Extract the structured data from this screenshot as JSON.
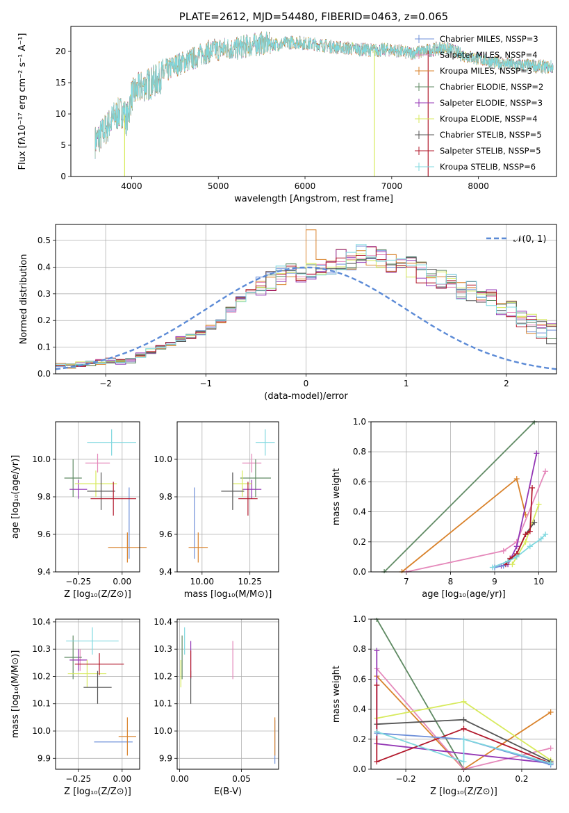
{
  "chart_data": [
    {
      "type": "line",
      "title": "PLATE=2612, MJD=54480, FIBERID=0463, z=0.065",
      "xlabel": "wavelength [Angstrom, rest frame]",
      "ylabel": "Flux [f$_\\lambda$10$^{-17}$ erg cm$^{-2}$ s$^{-1}$ A$^{-1}$]",
      "ylabel_display": "Flux [fλ10⁻¹⁷ erg cm⁻² s⁻¹ A⁻¹]",
      "xlim": [
        3300,
        8900
      ],
      "ylim": [
        0,
        24
      ],
      "xticks": [
        "4000",
        "5000",
        "6000",
        "7000",
        "8000"
      ],
      "yticks": [
        "0",
        "5",
        "10",
        "15",
        "20"
      ],
      "legend_position": "top-right",
      "series": [
        {
          "name": "Chabrier MILES, N$_{SSP}$=3",
          "label_display": "Chabrier MILES, NSSP=3",
          "color": "#6d8fd9"
        },
        {
          "name": "Salpeter MILES, N$_{SSP}$=4",
          "label_display": "Salpeter MILES, NSSP=4",
          "color": "#e589bb"
        },
        {
          "name": "Kroupa MILES, N$_{SSP}$=3",
          "label_display": "Kroupa MILES, NSSP=3",
          "color": "#d9822b"
        },
        {
          "name": "Chabrier ELODIE, N$_{SSP}$=2",
          "label_display": "Chabrier ELODIE, NSSP=2",
          "color": "#5f8a63"
        },
        {
          "name": "Salpeter ELODIE, N$_{SSP}$=3",
          "label_display": "Salpeter ELODIE, NSSP=3",
          "color": "#9437b5"
        },
        {
          "name": "Kroupa ELODIE, N$_{SSP}$=4",
          "label_display": "Kroupa ELODIE, NSSP=4",
          "color": "#d7ea5c"
        },
        {
          "name": "Chabrier STELIB, N$_{SSP}$=5",
          "label_display": "Chabrier STELIB, NSSP=5",
          "color": "#555555"
        },
        {
          "name": "Salpeter STELIB, N$_{SSP}$=5",
          "label_display": "Salpeter STELIB, NSSP=5",
          "color": "#b2182b"
        },
        {
          "name": "Kroupa STELIB, N$_{SSP}$=6",
          "label_display": "Kroupa STELIB, NSSP=6",
          "color": "#7fd8df"
        }
      ],
      "continuum": {
        "x": [
          3580,
          3700,
          3800,
          3900,
          3950,
          4000,
          4100,
          4200,
          4300,
          4400,
          4500,
          4600,
          4700,
          4800,
          4900,
          5000,
          5100,
          5200,
          5300,
          5400,
          5500,
          5600,
          5700,
          5800,
          5900,
          6000,
          6200,
          6400,
          6600,
          6800,
          7000,
          7200,
          7400,
          7600,
          7700,
          7800,
          8000,
          8200,
          8400,
          8600,
          8800
        ],
        "y": [
          5.5,
          7.5,
          9.5,
          10.5,
          9.0,
          13.0,
          14.2,
          14.8,
          15.5,
          16.8,
          17.8,
          18.3,
          18.8,
          19.5,
          20.0,
          20.3,
          20.5,
          20.4,
          20.8,
          21.0,
          21.3,
          21.2,
          21.1,
          21.4,
          21.5,
          21.3,
          21.0,
          20.6,
          20.4,
          20.2,
          20.3,
          19.7,
          20.1,
          20.6,
          20.2,
          19.5,
          18.8,
          18.2,
          17.9,
          17.7,
          17.5
        ]
      },
      "dropouts": [
        {
          "x": 3920,
          "y": 0
        },
        {
          "x": 6800,
          "y": 0
        },
        {
          "x": 7420,
          "y": 0
        }
      ]
    },
    {
      "type": "bar",
      "xlabel": "(data-model)/error",
      "ylabel": "Normed distribution",
      "xlim": [
        -2.5,
        2.5
      ],
      "ylim": [
        0,
        0.56
      ],
      "xticks": [
        "−2",
        "−1",
        "0",
        "1",
        "2"
      ],
      "yticks": [
        "0.0",
        "0.1",
        "0.2",
        "0.3",
        "0.4",
        "0.5"
      ],
      "legend_position": "top-right",
      "reference_curve": {
        "name": "$\\mathcal{N}(0,1)$",
        "label_display": "𝒩(0, 1)",
        "mean": 0,
        "sigma": 1,
        "color": "#5b8ad6",
        "style": "dashed"
      },
      "bin_edges_start": -2.5,
      "bin_width": 0.1,
      "base_histogram": [
        0.03,
        0.03,
        0.035,
        0.04,
        0.045,
        0.05,
        0.045,
        0.05,
        0.07,
        0.085,
        0.1,
        0.115,
        0.13,
        0.14,
        0.155,
        0.175,
        0.2,
        0.24,
        0.28,
        0.31,
        0.33,
        0.35,
        0.37,
        0.38,
        0.375,
        0.39,
        0.4,
        0.41,
        0.43,
        0.42,
        0.45,
        0.44,
        0.43,
        0.42,
        0.41,
        0.4,
        0.38,
        0.37,
        0.35,
        0.34,
        0.32,
        0.31,
        0.3,
        0.28,
        0.26,
        0.24,
        0.21,
        0.19,
        0.17,
        0.15,
        0.13,
        0.12,
        0.1,
        0.09,
        0.085,
        0.08,
        0.07,
        0.065,
        0.06,
        0.05,
        0.05,
        0.045,
        0.04,
        0.035,
        0.03,
        0.025,
        0.02,
        0.02,
        0.015,
        0.015,
        0.01,
        0.01,
        0.005,
        0.005,
        0.005
      ],
      "series_colors": [
        "#6d8fd9",
        "#e589bb",
        "#d9822b",
        "#5f8a63",
        "#9437b5",
        "#d7ea5c",
        "#555555",
        "#b2182b",
        "#7fd8df"
      ]
    },
    {
      "type": "scatter",
      "subtype": "errorbar",
      "xlabel": "Z [log$_{10}$(Z/Z$_\\odot$)]",
      "xlabel_display": "Z [log₁₀(Z/Z⊙)]",
      "ylabel": "age  [log$_{10}$(age/yr)]",
      "ylabel_display": "age  [log₁₀(age/yr)]",
      "xlim": [
        -0.38,
        0.1
      ],
      "ylim": [
        9.4,
        10.2
      ],
      "xticks": [
        "−0.25",
        "0.00"
      ],
      "yticks": [
        "9.4",
        "9.6",
        "9.8",
        "10.0"
      ],
      "points": [
        {
          "x": 0.04,
          "y": 9.66,
          "xerr": 0.0,
          "yerr": 0.19,
          "color": "#6d8fd9"
        },
        {
          "x": -0.14,
          "y": 9.98,
          "xerr": 0.07,
          "yerr": 0.05,
          "color": "#e589bb"
        },
        {
          "x": 0.03,
          "y": 9.53,
          "xerr": 0.11,
          "yerr": 0.08,
          "color": "#d9822b"
        },
        {
          "x": -0.28,
          "y": 9.9,
          "xerr": 0.05,
          "yerr": 0.1,
          "color": "#5f8a63"
        },
        {
          "x": -0.25,
          "y": 9.84,
          "xerr": 0.05,
          "yerr": 0.05,
          "color": "#9437b5"
        },
        {
          "x": -0.15,
          "y": 9.87,
          "xerr": 0.12,
          "yerr": 0.07,
          "color": "#d7ea5c"
        },
        {
          "x": -0.12,
          "y": 9.83,
          "xerr": 0.08,
          "yerr": 0.1,
          "color": "#555555"
        },
        {
          "x": -0.05,
          "y": 9.79,
          "xerr": 0.13,
          "yerr": 0.09,
          "color": "#b2182b"
        },
        {
          "x": -0.06,
          "y": 10.09,
          "xerr": 0.14,
          "yerr": 0.07,
          "color": "#7fd8df"
        }
      ]
    },
    {
      "type": "scatter",
      "subtype": "errorbar",
      "xlabel": "mass [log$_{10}$(M/M$_\\odot$)]",
      "xlabel_display": "mass [log₁₀(M/M⊙)]",
      "xlim": [
        9.87,
        10.4
      ],
      "ylim": [
        9.4,
        10.2
      ],
      "xticks": [
        "10.00",
        "10.25"
      ],
      "yticks": [
        "9.4",
        "9.6",
        "9.8",
        "10.0"
      ],
      "points": [
        {
          "x": 9.96,
          "y": 9.66,
          "xerr": 0.0,
          "yerr": 0.19,
          "color": "#6d8fd9"
        },
        {
          "x": 10.26,
          "y": 9.98,
          "xerr": 0.05,
          "yerr": 0.05,
          "color": "#e589bb"
        },
        {
          "x": 9.98,
          "y": 9.53,
          "xerr": 0.05,
          "yerr": 0.08,
          "color": "#d9822b"
        },
        {
          "x": 10.28,
          "y": 9.9,
          "xerr": 0.08,
          "yerr": 0.1,
          "color": "#5f8a63"
        },
        {
          "x": 10.26,
          "y": 9.84,
          "xerr": 0.05,
          "yerr": 0.05,
          "color": "#9437b5"
        },
        {
          "x": 10.21,
          "y": 9.87,
          "xerr": 0.05,
          "yerr": 0.07,
          "color": "#d7ea5c"
        },
        {
          "x": 10.16,
          "y": 9.83,
          "xerr": 0.06,
          "yerr": 0.1,
          "color": "#555555"
        },
        {
          "x": 10.24,
          "y": 9.79,
          "xerr": 0.05,
          "yerr": 0.09,
          "color": "#b2182b"
        },
        {
          "x": 10.33,
          "y": 10.09,
          "xerr": 0.05,
          "yerr": 0.07,
          "color": "#7fd8df"
        }
      ]
    },
    {
      "type": "line",
      "xlabel": "age  [log$_{10}$(age/yr)]",
      "xlabel_display": "age  [log₁₀(age/yr)]",
      "ylabel": "mass weight",
      "xlim": [
        6.2,
        10.4
      ],
      "ylim": [
        0,
        1.0
      ],
      "xticks": [
        "7",
        "8",
        "9",
        "10"
      ],
      "yticks": [
        "0.0",
        "0.2",
        "0.4",
        "0.6",
        "0.8",
        "1.0"
      ],
      "series": [
        {
          "color": "#5f8a63",
          "x": [
            6.5,
            9.9
          ],
          "y": [
            0.0,
            1.0
          ]
        },
        {
          "color": "#d9822b",
          "x": [
            6.9,
            9.5,
            9.7
          ],
          "y": [
            0.0,
            0.62,
            0.38
          ]
        },
        {
          "color": "#e589bb",
          "x": [
            7.0,
            9.2,
            9.5,
            10.15
          ],
          "y": [
            0.0,
            0.14,
            0.2,
            0.67
          ]
        },
        {
          "color": "#9437b5",
          "x": [
            9.15,
            9.3,
            9.5,
            9.95
          ],
          "y": [
            0.04,
            0.05,
            0.17,
            0.79
          ]
        },
        {
          "color": "#d7ea5c",
          "x": [
            9.4,
            9.5,
            9.7,
            10.0
          ],
          "y": [
            0.05,
            0.1,
            0.2,
            0.45
          ]
        },
        {
          "color": "#555555",
          "x": [
            9.3,
            9.5,
            9.7,
            9.9
          ],
          "y": [
            0.07,
            0.12,
            0.25,
            0.33
          ]
        },
        {
          "color": "#b2182b",
          "x": [
            9.25,
            9.35,
            9.5,
            9.7,
            9.8,
            9.85
          ],
          "y": [
            0.05,
            0.09,
            0.12,
            0.25,
            0.27,
            0.56
          ]
        },
        {
          "color": "#6d8fd9",
          "x": [
            9.0,
            9.2
          ],
          "y": [
            0.03,
            0.04
          ]
        },
        {
          "color": "#7fd8df",
          "x": [
            8.95,
            9.3,
            9.5,
            9.8,
            10.05,
            10.15
          ],
          "y": [
            0.03,
            0.07,
            0.1,
            0.17,
            0.22,
            0.25
          ]
        }
      ]
    },
    {
      "type": "scatter",
      "subtype": "errorbar",
      "xlabel": "Z [log$_{10}$(Z/Z$_\\odot$)]",
      "xlabel_display": "Z [log₁₀(Z/Z⊙)]",
      "ylabel": "mass [log$_{10}$(M/M$_\\odot$)]",
      "ylabel_display": "mass [log₁₀(M/M⊙)]",
      "xlim": [
        -0.38,
        0.1
      ],
      "ylim": [
        9.86,
        10.41
      ],
      "xticks": [
        "−0.25",
        "0.00"
      ],
      "yticks": [
        "9.9",
        "10.0",
        "10.1",
        "10.2",
        "10.3",
        "10.4"
      ],
      "points": [
        {
          "x": -0.05,
          "y": 9.96,
          "xerr": 0.11,
          "yerr": 0.0,
          "color": "#6d8fd9"
        },
        {
          "x": -0.24,
          "y": 10.26,
          "xerr": 0.04,
          "yerr": 0.04,
          "color": "#e589bb"
        },
        {
          "x": 0.03,
          "y": 9.98,
          "xerr": 0.05,
          "yerr": 0.07,
          "color": "#d9822b"
        },
        {
          "x": -0.28,
          "y": 10.27,
          "xerr": 0.05,
          "yerr": 0.08,
          "color": "#5f8a63"
        },
        {
          "x": -0.25,
          "y": 10.26,
          "xerr": 0.05,
          "yerr": 0.04,
          "color": "#9437b5"
        },
        {
          "x": -0.2,
          "y": 10.21,
          "xerr": 0.11,
          "yerr": 0.05,
          "color": "#d7ea5c"
        },
        {
          "x": -0.14,
          "y": 10.16,
          "xerr": 0.08,
          "yerr": 0.06,
          "color": "#555555"
        },
        {
          "x": -0.13,
          "y": 10.245,
          "xerr": 0.14,
          "yerr": 0.04,
          "color": "#b2182b"
        },
        {
          "x": -0.17,
          "y": 10.33,
          "xerr": 0.15,
          "yerr": 0.05,
          "color": "#7fd8df"
        }
      ]
    },
    {
      "type": "scatter",
      "subtype": "errorbar",
      "xlabel": "E(B-V)",
      "xlim": [
        -0.002,
        0.08
      ],
      "ylim": [
        9.86,
        10.41
      ],
      "xticks": [
        "0.00",
        "0.05"
      ],
      "yticks": [
        "9.9",
        "10.0",
        "10.1",
        "10.2",
        "10.3",
        "10.4"
      ],
      "points": [
        {
          "x": 0.077,
          "y": 9.96,
          "xerr": 0,
          "yerr": 0.08,
          "color": "#6d8fd9"
        },
        {
          "x": 0.043,
          "y": 10.26,
          "xerr": 0,
          "yerr": 0.07,
          "color": "#e589bb"
        },
        {
          "x": 0.077,
          "y": 9.98,
          "xerr": 0,
          "yerr": 0.07,
          "color": "#d9822b"
        },
        {
          "x": 0.002,
          "y": 10.27,
          "xerr": 0,
          "yerr": 0.08,
          "color": "#5f8a63"
        },
        {
          "x": 0.009,
          "y": 10.26,
          "xerr": 0,
          "yerr": 0.07,
          "color": "#9437b5"
        },
        {
          "x": 0.001,
          "y": 10.21,
          "xerr": 0,
          "yerr": 0.05,
          "color": "#d7ea5c"
        },
        {
          "x": 0.009,
          "y": 10.16,
          "xerr": 0,
          "yerr": 0.06,
          "color": "#555555"
        },
        {
          "x": 0.009,
          "y": 10.245,
          "xerr": 0,
          "yerr": 0.05,
          "color": "#b2182b"
        },
        {
          "x": 0.004,
          "y": 10.33,
          "xerr": 0,
          "yerr": 0.05,
          "color": "#7fd8df"
        }
      ]
    },
    {
      "type": "line",
      "xlabel": "Z [log$_{10}$(Z/Z$_\\odot$)]",
      "xlabel_display": "Z [log₁₀(Z/Z⊙)]",
      "ylabel": "mass weight",
      "xlim": [
        -0.32,
        0.32
      ],
      "ylim": [
        0,
        1.0
      ],
      "xticks": [
        "−0.2",
        "0.0",
        "0.2"
      ],
      "yticks": [
        "0.0",
        "0.2",
        "0.4",
        "0.6",
        "0.8",
        "1.0"
      ],
      "series": [
        {
          "color": "#5f8a63",
          "x": [
            -0.3,
            0.0
          ],
          "y": [
            1.0,
            0.0
          ]
        },
        {
          "color": "#d9822b",
          "x": [
            -0.3,
            0.0,
            0.3
          ],
          "y": [
            0.62,
            0.0,
            0.38
          ]
        },
        {
          "color": "#e589bb",
          "x": [
            -0.3,
            0.0,
            0.3
          ],
          "y": [
            0.67,
            0.0,
            0.14
          ]
        },
        {
          "color": "#9437b5",
          "x": [
            -0.3,
            -0.3,
            0.3
          ],
          "y": [
            0.79,
            0.17,
            0.04
          ]
        },
        {
          "color": "#d7ea5c",
          "x": [
            -0.3,
            0.0,
            0.3
          ],
          "y": [
            0.34,
            0.45,
            0.06
          ]
        },
        {
          "color": "#555555",
          "x": [
            -0.3,
            0.0,
            0.3
          ],
          "y": [
            0.3,
            0.33,
            0.05
          ]
        },
        {
          "color": "#b2182b",
          "x": [
            -0.3,
            -0.3,
            0.0,
            0.3
          ],
          "y": [
            0.56,
            0.05,
            0.27,
            0.04
          ]
        },
        {
          "color": "#6d8fd9",
          "x": [
            -0.3,
            0.0,
            0.3
          ],
          "y": [
            0.24,
            0.2,
            0.03
          ]
        },
        {
          "color": "#7fd8df",
          "x": [
            -0.3,
            0.0,
            0.0,
            0.3
          ],
          "y": [
            0.25,
            0.05,
            0.2,
            0.04
          ]
        }
      ]
    }
  ]
}
